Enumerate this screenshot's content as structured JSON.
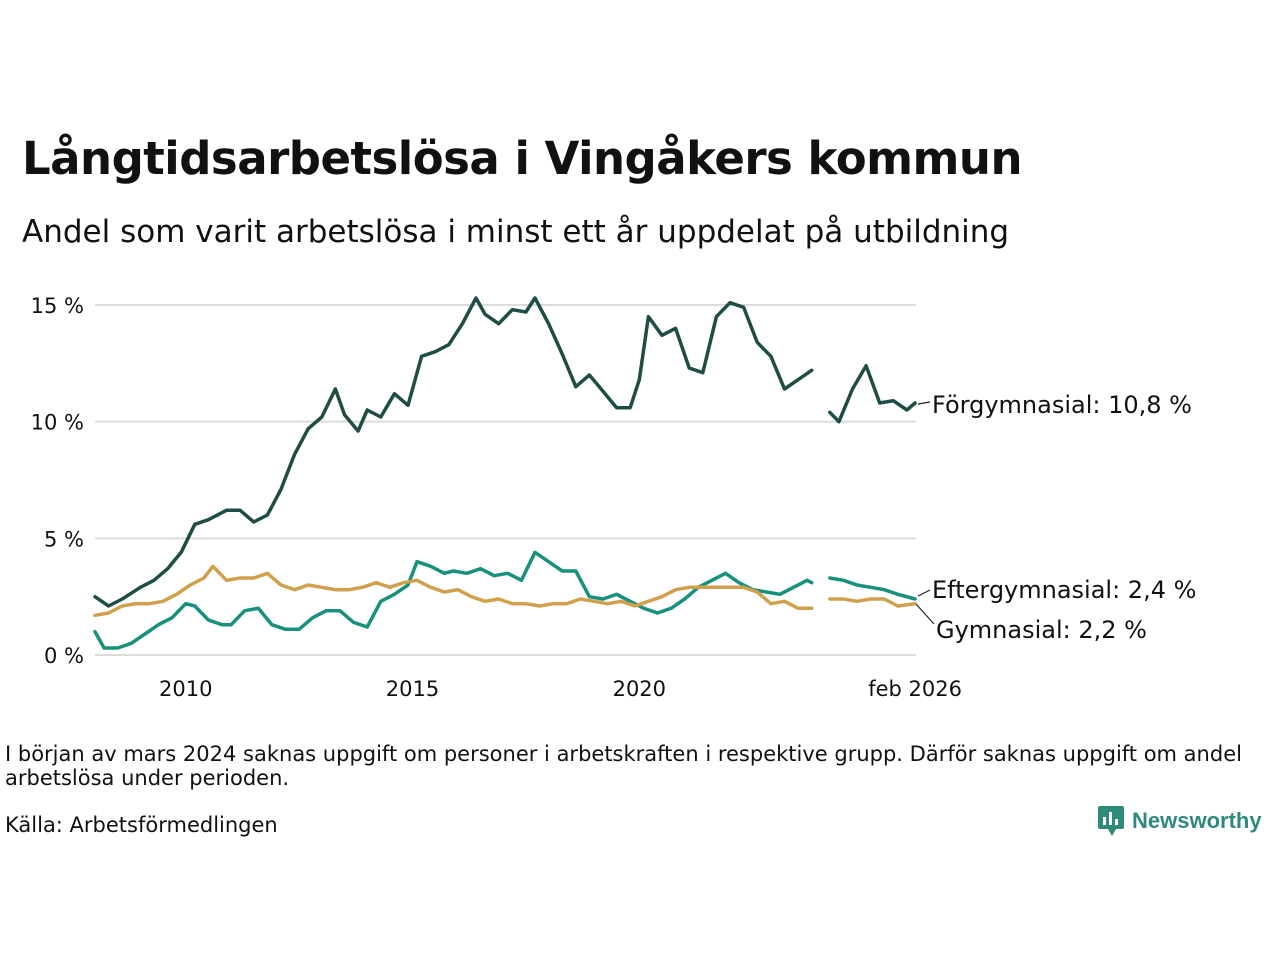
{
  "title": "Långtidsarbetslösa i Vingåkers kommun",
  "subtitle": "Andel som varit arbetslösa i minst ett år uppdelat på utbildning",
  "note": "I början av mars 2024 saknas uppgift om personer i arbetskraften i respektive grupp. Därför saknas uppgift om andel arbetslösa under perioden.",
  "source": "Källa: Arbetsförmedlingen",
  "logo": {
    "text": "Newsworthy"
  },
  "chart_data": {
    "type": "line",
    "title": "Långtidsarbetslösa i Vingåkers kommun",
    "xlabel": "",
    "ylabel": "",
    "xlim": [
      2008.0,
      2026.1
    ],
    "ylim": [
      0,
      15
    ],
    "grid": true,
    "y_ticks": [
      {
        "value": 0,
        "label": "0 %"
      },
      {
        "value": 5,
        "label": "5 %"
      },
      {
        "value": 10,
        "label": "10 %"
      },
      {
        "value": 15,
        "label": "15 %"
      }
    ],
    "x_ticks": [
      {
        "value": 2010,
        "label": "2010"
      },
      {
        "value": 2015,
        "label": "2015"
      },
      {
        "value": 2020,
        "label": "2020"
      },
      {
        "value": 2026.08,
        "label": "feb 2026"
      }
    ],
    "series": [
      {
        "name": "Förgymnasial",
        "label": "Förgymnasial: 10,8 %",
        "color": "#1e4d45",
        "x": [
          2008.0,
          2008.3,
          2008.6,
          2009.0,
          2009.3,
          2009.6,
          2009.9,
          2010.2,
          2010.5,
          2010.9,
          2011.2,
          2011.5,
          2011.8,
          2012.1,
          2012.4,
          2012.7,
          2013.0,
          2013.3,
          2013.5,
          2013.8,
          2014.0,
          2014.3,
          2014.6,
          2014.9,
          2015.2,
          2015.5,
          2015.8,
          2016.1,
          2016.4,
          2016.6,
          2016.9,
          2017.2,
          2017.5,
          2017.7,
          2018.0,
          2018.3,
          2018.6,
          2018.9,
          2019.2,
          2019.5,
          2019.8,
          2020.0,
          2020.2,
          2020.5,
          2020.8,
          2021.1,
          2021.4,
          2021.7,
          2022.0,
          2022.3,
          2022.6,
          2022.9,
          2023.2,
          2023.5,
          2023.8,
          null,
          2024.2,
          2024.4,
          2024.7,
          2025.0,
          2025.3,
          2025.6,
          2025.9,
          2026.08
        ],
        "values": [
          2.5,
          2.1,
          2.4,
          2.9,
          3.2,
          3.7,
          4.4,
          5.6,
          5.8,
          6.2,
          6.2,
          5.7,
          6.0,
          7.1,
          8.6,
          9.7,
          10.2,
          11.4,
          10.3,
          9.6,
          10.5,
          10.2,
          11.2,
          10.7,
          12.8,
          13.0,
          13.3,
          14.2,
          15.3,
          14.6,
          14.2,
          14.8,
          14.7,
          15.3,
          14.2,
          12.9,
          11.5,
          12.0,
          11.3,
          10.6,
          10.6,
          11.8,
          14.5,
          13.7,
          14.0,
          12.3,
          12.1,
          14.5,
          15.1,
          14.9,
          13.4,
          12.8,
          11.4,
          11.8,
          12.2,
          null,
          10.4,
          10.0,
          11.4,
          12.4,
          10.8,
          10.9,
          10.5,
          10.8
        ]
      },
      {
        "name": "Eftergymnasial",
        "label": "Eftergymnasial:  2,4 %",
        "color": "#17917c",
        "x": [
          2008.0,
          2008.2,
          2008.5,
          2008.8,
          2009.1,
          2009.4,
          2009.7,
          2010.0,
          2010.2,
          2010.5,
          2010.8,
          2011.0,
          2011.3,
          2011.6,
          2011.9,
          2012.2,
          2012.5,
          2012.8,
          2013.1,
          2013.4,
          2013.7,
          2014.0,
          2014.3,
          2014.6,
          2014.9,
          2015.1,
          2015.4,
          2015.7,
          2015.9,
          2016.2,
          2016.5,
          2016.8,
          2017.1,
          2017.4,
          2017.7,
          2018.0,
          2018.3,
          2018.6,
          2018.9,
          2019.2,
          2019.5,
          2019.8,
          2020.1,
          2020.4,
          2020.7,
          2021.0,
          2021.3,
          2021.6,
          2021.9,
          2022.2,
          2022.5,
          2022.8,
          2023.1,
          2023.4,
          2023.7,
          2023.8,
          null,
          2024.2,
          2024.5,
          2024.8,
          2025.1,
          2025.4,
          2025.7,
          2026.08
        ],
        "values": [
          1.0,
          0.3,
          0.3,
          0.5,
          0.9,
          1.3,
          1.6,
          2.2,
          2.1,
          1.5,
          1.3,
          1.3,
          1.9,
          2.0,
          1.3,
          1.1,
          1.1,
          1.6,
          1.9,
          1.9,
          1.4,
          1.2,
          2.3,
          2.6,
          3.0,
          4.0,
          3.8,
          3.5,
          3.6,
          3.5,
          3.7,
          3.4,
          3.5,
          3.2,
          4.4,
          4.0,
          3.6,
          3.6,
          2.5,
          2.4,
          2.6,
          2.3,
          2.0,
          1.8,
          2.0,
          2.4,
          2.9,
          3.2,
          3.5,
          3.1,
          2.8,
          2.7,
          2.6,
          2.9,
          3.2,
          3.1,
          null,
          3.3,
          3.2,
          3.0,
          2.9,
          2.8,
          2.6,
          2.4
        ]
      },
      {
        "name": "Gymnasial",
        "label": "Gymnasial:  2,2 %",
        "color": "#d1a04c",
        "x": [
          2008.0,
          2008.3,
          2008.6,
          2008.9,
          2009.2,
          2009.5,
          2009.8,
          2010.1,
          2010.4,
          2010.6,
          2010.9,
          2011.2,
          2011.5,
          2011.8,
          2012.1,
          2012.4,
          2012.7,
          2013.0,
          2013.3,
          2013.6,
          2013.9,
          2014.2,
          2014.5,
          2014.8,
          2015.1,
          2015.4,
          2015.7,
          2016.0,
          2016.3,
          2016.6,
          2016.9,
          2017.2,
          2017.5,
          2017.8,
          2018.1,
          2018.4,
          2018.7,
          2019.0,
          2019.3,
          2019.6,
          2019.9,
          2020.2,
          2020.5,
          2020.8,
          2021.1,
          2021.4,
          2021.7,
          2022.0,
          2022.3,
          2022.6,
          2022.9,
          2023.2,
          2023.5,
          2023.8,
          null,
          2024.2,
          2024.5,
          2024.8,
          2025.1,
          2025.4,
          2025.7,
          2026.08
        ],
        "values": [
          1.7,
          1.8,
          2.1,
          2.2,
          2.2,
          2.3,
          2.6,
          3.0,
          3.3,
          3.8,
          3.2,
          3.3,
          3.3,
          3.5,
          3.0,
          2.8,
          3.0,
          2.9,
          2.8,
          2.8,
          2.9,
          3.1,
          2.9,
          3.1,
          3.2,
          2.9,
          2.7,
          2.8,
          2.5,
          2.3,
          2.4,
          2.2,
          2.2,
          2.1,
          2.2,
          2.2,
          2.4,
          2.3,
          2.2,
          2.3,
          2.1,
          2.3,
          2.5,
          2.8,
          2.9,
          2.9,
          2.9,
          2.9,
          2.9,
          2.7,
          2.2,
          2.3,
          2.0,
          2.0,
          null,
          2.4,
          2.4,
          2.3,
          2.4,
          2.4,
          2.1,
          2.2
        ]
      }
    ]
  }
}
